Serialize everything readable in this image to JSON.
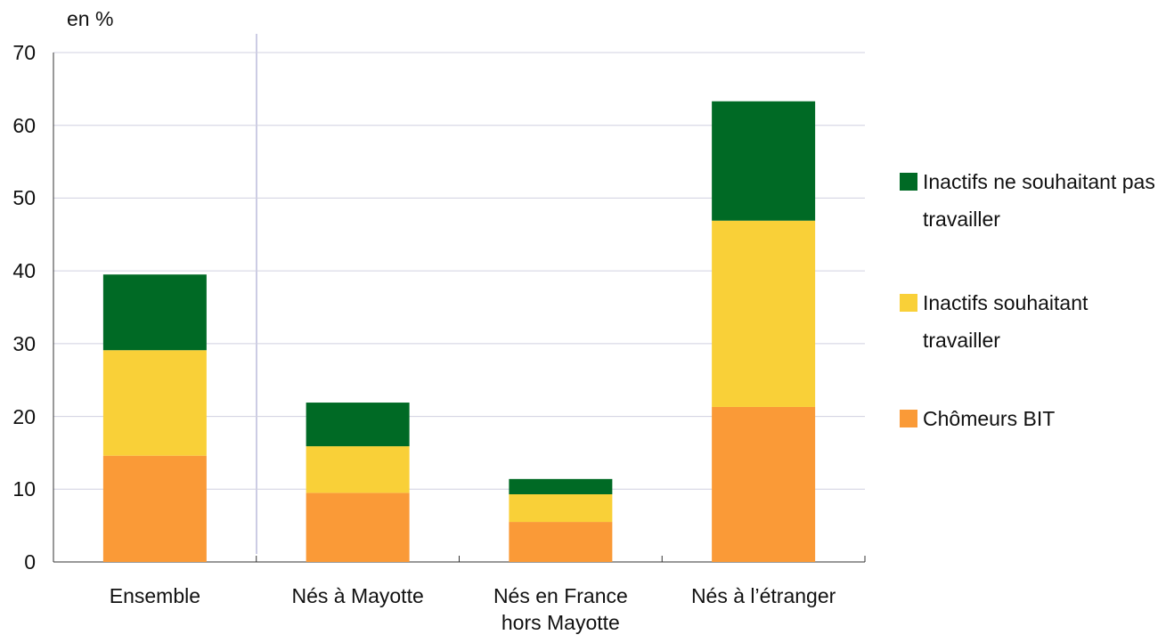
{
  "chart_data": {
    "type": "stacked_bar",
    "y_label": "en %",
    "categories": [
      "Ensemble",
      "Nés à Mayotte",
      "Nés en France hors Mayotte",
      "Nés à l’étranger"
    ],
    "series": [
      {
        "name": "Chômeurs BIT",
        "color": "#fa9a37",
        "values": [
          14.6,
          9.5,
          5.5,
          21.3
        ]
      },
      {
        "name": "Inactifs souhaitant travailler",
        "color": "#f9d038",
        "values": [
          14.5,
          6.4,
          3.8,
          25.6
        ]
      },
      {
        "name": "Inactifs ne souhaitant pas travailler",
        "color": "#006a25",
        "values": [
          10.4,
          6.0,
          2.1,
          16.4
        ]
      }
    ],
    "ylim": [
      0,
      70
    ],
    "yticks": [
      0,
      10,
      20,
      30,
      40,
      50,
      60,
      70
    ],
    "grid": true,
    "legend": "right"
  }
}
